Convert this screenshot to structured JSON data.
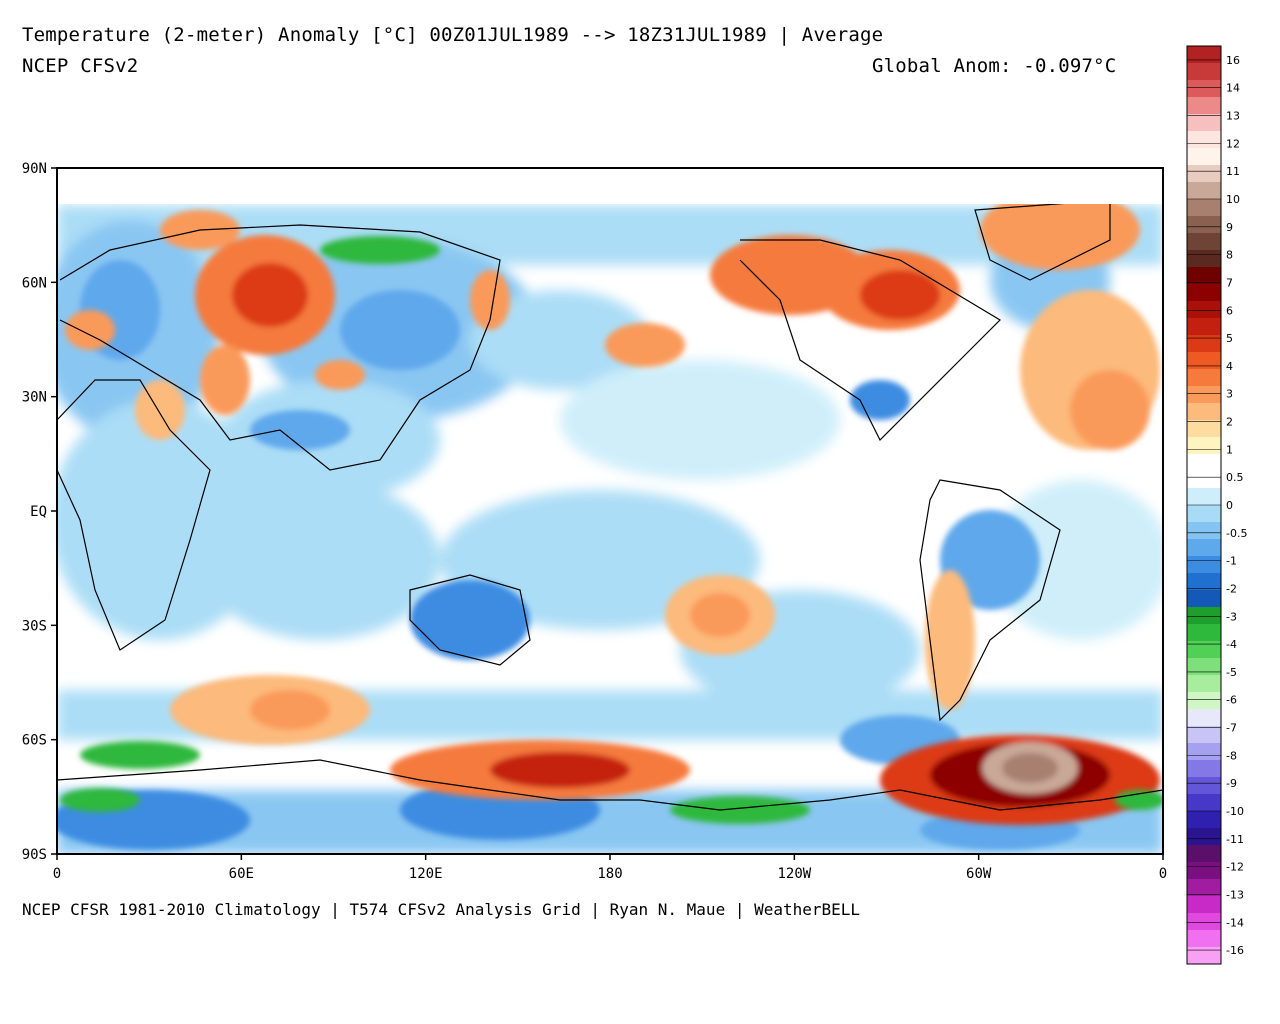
{
  "header": {
    "title": "Temperature (2-meter) Anomaly  [°C] 00Z01JUL1989 --> 18Z31JUL1989 | Average",
    "model": "NCEP CFSv2",
    "global_anomaly": "Global Anom: -0.097°C"
  },
  "footer": "NCEP CFSR 1981-2010 Climatology | T574 CFSv2 Analysis Grid | Ryan N. Maue | WeatherBELL",
  "axes": {
    "lat_ticks": [
      "90N",
      "60N",
      "30N",
      "EQ",
      "30S",
      "60S",
      "90S"
    ],
    "lon_ticks": [
      "0",
      "60E",
      "120E",
      "180",
      "120W",
      "60W",
      "0"
    ]
  },
  "colorbar": {
    "labels": [
      "16",
      "14",
      "13",
      "12",
      "11",
      "10",
      "9",
      "8",
      "7",
      "6",
      "5",
      "4",
      "3",
      "2",
      "1",
      "0.5",
      "0",
      "-0.5",
      "-1",
      "-2",
      "-3",
      "-4",
      "-5",
      "-6",
      "-7",
      "-8",
      "-9",
      "-10",
      "-11",
      "-12",
      "-13",
      "-14",
      "-16"
    ],
    "colors": [
      "#b22222",
      "#c83a3a",
      "#dc5a5a",
      "#ec8a8a",
      "#f7c0c0",
      "#fde6e0",
      "#fff4ec",
      "#e8ccc0",
      "#c9a898",
      "#a88070",
      "#8a6050",
      "#6e4436",
      "#5a2a20",
      "#6e0000",
      "#8c0000",
      "#a81008",
      "#c42010",
      "#dc3a16",
      "#ef5a24",
      "#f57a3c",
      "#fa9a5a",
      "#fcba7c",
      "#fedca0",
      "#fff4c0",
      "#ffffff",
      "#ffffff",
      "#cdeefa",
      "#a8dcf6",
      "#84c4f2",
      "#5ea8ec",
      "#3c8ce2",
      "#2070d0",
      "#1458b8",
      "#1e9e2a",
      "#2eb83c",
      "#50d054",
      "#7ee07a",
      "#a8ec9e",
      "#d0f6c6",
      "#e8e8fb",
      "#c8c4f6",
      "#a6a0f0",
      "#8478e6",
      "#6456d8",
      "#4838c8",
      "#3020b0",
      "#2a1490",
      "#5a106a",
      "#7a1080",
      "#a01ca0",
      "#c82ac8",
      "#e048e0",
      "#f070f0",
      "#f8a0f4"
    ]
  },
  "map": {
    "anomaly_regions": [
      {
        "name": "west-siberia-warm",
        "level": 4
      },
      {
        "name": "western-canada-warm",
        "level": 4
      },
      {
        "name": "greenland-warm",
        "level": 3
      },
      {
        "name": "north-pacific-warm",
        "level": 2
      },
      {
        "name": "south-pacific-warm",
        "level": 2
      },
      {
        "name": "southern-ocean-warm",
        "level": 2
      },
      {
        "name": "ross-sea-warm",
        "level": 6
      },
      {
        "name": "weddell-sea-hot",
        "level": 10
      },
      {
        "name": "north-atlantic-warm",
        "level": 2
      },
      {
        "name": "central-siberia-cold",
        "level": -2
      },
      {
        "name": "taymyr-cold",
        "level": -4
      },
      {
        "name": "eastern-us-cold",
        "level": -2
      },
      {
        "name": "australia-cold",
        "level": -2
      },
      {
        "name": "south-america-cold",
        "level": -2
      },
      {
        "name": "east-antarctica-cold",
        "level": -4
      },
      {
        "name": "west-antarctica-cold",
        "level": -4
      }
    ]
  }
}
